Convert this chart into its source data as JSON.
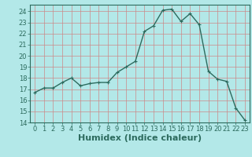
{
  "x": [
    0,
    1,
    2,
    3,
    4,
    5,
    6,
    7,
    8,
    9,
    10,
    11,
    12,
    13,
    14,
    15,
    16,
    17,
    18,
    19,
    20,
    21,
    22,
    23
  ],
  "y": [
    16.7,
    17.1,
    17.1,
    17.6,
    18.0,
    17.3,
    17.5,
    17.6,
    17.6,
    18.5,
    19.0,
    19.5,
    22.2,
    22.7,
    24.1,
    24.2,
    23.1,
    23.8,
    22.8,
    18.6,
    17.9,
    17.7,
    15.3,
    14.2
  ],
  "line_color": "#2d6b5e",
  "marker": "+",
  "marker_size": 3,
  "bg_color": "#b3e8e8",
  "grid_color_v": "#cc8888",
  "grid_color_h": "#cc8888",
  "xlabel": "Humidex (Indice chaleur)",
  "xlabel_fontsize": 8,
  "ylim": [
    14,
    24.6
  ],
  "yticks": [
    14,
    15,
    16,
    17,
    18,
    19,
    20,
    21,
    22,
    23,
    24
  ],
  "xticks": [
    0,
    1,
    2,
    3,
    4,
    5,
    6,
    7,
    8,
    9,
    10,
    11,
    12,
    13,
    14,
    15,
    16,
    17,
    18,
    19,
    20,
    21,
    22,
    23
  ],
  "tick_fontsize": 6,
  "line_width": 1.0
}
